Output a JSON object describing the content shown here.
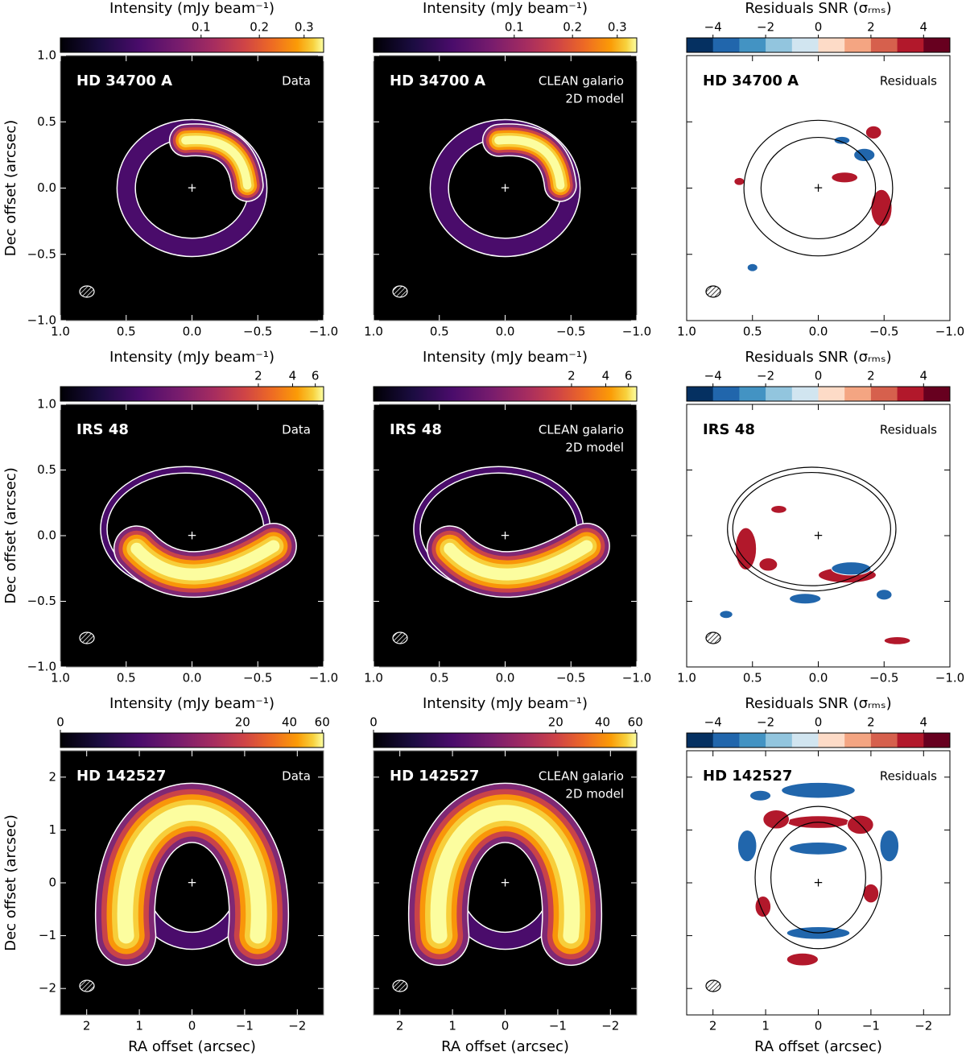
{
  "chart_data": [
    {
      "type": "image",
      "title": "Intensity (mJy beam⁻¹)",
      "target": "HD 34700 A",
      "label": [
        "Data"
      ],
      "colormap": "inferno",
      "clim": [
        0,
        0.35
      ],
      "cstretch": 0.5,
      "cticks": [
        0.1,
        0.2,
        0.3
      ],
      "xlim": [
        1,
        -1
      ],
      "ylim": [
        -1,
        1
      ],
      "ylabel": "Dec offset (arcsec)",
      "xticks": [
        {
          "value": 1,
          "label": "1.0"
        },
        {
          "value": 0.5,
          "label": "0.5"
        },
        {
          "value": 0,
          "label": "0.0"
        },
        {
          "value": -0.5,
          "label": "−0.5"
        },
        {
          "value": -1,
          "label": "−1.0"
        }
      ],
      "yticks": [
        {
          "value": -1,
          "label": "−1.0"
        },
        {
          "value": -0.5,
          "label": "−0.5"
        },
        {
          "value": 0,
          "label": "0.0"
        },
        {
          "value": 0.5,
          "label": "0.5"
        },
        {
          "value": 1,
          "label": "1.0"
        }
      ]
    },
    {
      "type": "image",
      "title": "Intensity (mJy beam⁻¹)",
      "target": "HD 34700 A",
      "label": [
        "CLEAN galario",
        "2D model"
      ],
      "colormap": "inferno",
      "clim": [
        0,
        0.35
      ],
      "cstretch": 0.5,
      "cticks": [
        0.1,
        0.2,
        0.3
      ],
      "xlim": [
        1,
        -1
      ],
      "ylim": [
        -1,
        1
      ],
      "yticklabels": false,
      "xticks": [
        {
          "value": 1,
          "label": "1.0"
        },
        {
          "value": 0.5,
          "label": "0.5"
        },
        {
          "value": 0,
          "label": "0.0"
        },
        {
          "value": -0.5,
          "label": "−0.5"
        },
        {
          "value": -1,
          "label": "−1.0"
        }
      ],
      "yticks": [
        -1,
        -0.5,
        0,
        0.5,
        1
      ]
    },
    {
      "type": "image",
      "title": "Residuals SNR (σᵣₘₛ)",
      "target": "HD 34700 A",
      "label": [
        "Residuals"
      ],
      "colormap": "RdBu_r",
      "clim": [
        -5,
        5
      ],
      "cticks": [
        {
          "value": -4,
          "label": "−4"
        },
        {
          "value": -2,
          "label": "−2"
        },
        0,
        2,
        4
      ],
      "xlim": [
        1,
        -1
      ],
      "ylim": [
        -1,
        1
      ],
      "yticklabels": false,
      "xticks": [
        {
          "value": 1,
          "label": "1.0"
        },
        {
          "value": 0.5,
          "label": "0.5"
        },
        {
          "value": 0,
          "label": "0.0"
        },
        {
          "value": -0.5,
          "label": "−0.5"
        },
        {
          "value": -1,
          "label": "−1.0"
        }
      ],
      "yticks": [
        -1,
        -0.5,
        0,
        0.5,
        1
      ]
    },
    {
      "type": "image",
      "title": "Intensity (mJy beam⁻¹)",
      "target": "IRS 48",
      "label": [
        "Data"
      ],
      "colormap": "inferno",
      "clim": [
        0,
        6.9
      ],
      "cstretch": 0.23,
      "cticks": [
        2,
        4,
        6
      ],
      "xlim": [
        1,
        -1
      ],
      "ylim": [
        -1,
        1
      ],
      "ylabel": "Dec offset (arcsec)",
      "xticks": [
        {
          "value": 1,
          "label": "1.0"
        },
        {
          "value": 0.5,
          "label": "0.5"
        },
        {
          "value": 0,
          "label": "0.0"
        },
        {
          "value": -0.5,
          "label": "−0.5"
        },
        {
          "value": -1,
          "label": "−1.0"
        }
      ],
      "yticks": [
        {
          "value": -1,
          "label": "−1.0"
        },
        {
          "value": -0.5,
          "label": "−0.5"
        },
        {
          "value": 0,
          "label": "0.0"
        },
        {
          "value": 0.5,
          "label": "0.5"
        },
        {
          "value": 1,
          "label": "1.0"
        }
      ]
    },
    {
      "type": "image",
      "title": "Intensity (mJy beam⁻¹)",
      "target": "IRS 48",
      "label": [
        "CLEAN galario",
        "2D model"
      ],
      "colormap": "inferno",
      "clim": [
        0,
        6.9
      ],
      "cstretch": 0.23,
      "cticks": [
        2,
        4,
        6
      ],
      "xlim": [
        1,
        -1
      ],
      "ylim": [
        -1,
        1
      ],
      "yticklabels": false,
      "xticks": [
        {
          "value": 1,
          "label": "1.0"
        },
        {
          "value": 0.5,
          "label": "0.5"
        },
        {
          "value": 0,
          "label": "0.0"
        },
        {
          "value": -0.5,
          "label": "−0.5"
        },
        {
          "value": -1,
          "label": "−1.0"
        }
      ],
      "yticks": [
        -1,
        -0.5,
        0,
        0.5,
        1
      ]
    },
    {
      "type": "image",
      "title": "Residuals SNR (σᵣₘₛ)",
      "target": "IRS 48",
      "label": [
        "Residuals"
      ],
      "colormap": "RdBu_r",
      "clim": [
        -5,
        5
      ],
      "cticks": [
        {
          "value": -4,
          "label": "−4"
        },
        {
          "value": -2,
          "label": "−2"
        },
        0,
        2,
        4
      ],
      "xlim": [
        1,
        -1
      ],
      "ylim": [
        -1,
        1
      ],
      "yticklabels": false,
      "xticks": [
        {
          "value": 1,
          "label": "1.0"
        },
        {
          "value": 0.5,
          "label": "0.5"
        },
        {
          "value": 0,
          "label": "0.0"
        },
        {
          "value": -0.5,
          "label": "−0.5"
        },
        {
          "value": -1,
          "label": "−1.0"
        }
      ],
      "yticks": [
        -1,
        -0.5,
        0,
        0.5,
        1
      ]
    },
    {
      "type": "image",
      "title": "Intensity (mJy beam⁻¹)",
      "target": "HD 142527",
      "label": [
        "Data"
      ],
      "colormap": "inferno",
      "clim": [
        0,
        61
      ],
      "cstretch": 0.33,
      "cticks": [
        0,
        20,
        40,
        60
      ],
      "xlim": [
        2.5,
        -2.5
      ],
      "ylim": [
        -2.5,
        2.5
      ],
      "xlabel": "RA offset (arcsec)",
      "ylabel": "Dec offset (arcsec)",
      "xticks": [
        2,
        1,
        0,
        {
          "value": -1,
          "label": "−1"
        },
        {
          "value": -2,
          "label": "−2"
        }
      ],
      "yticks": [
        {
          "value": -2,
          "label": "−2"
        },
        {
          "value": -1,
          "label": "−1"
        },
        0,
        1,
        2
      ]
    },
    {
      "type": "image",
      "title": "Intensity (mJy beam⁻¹)",
      "target": "HD 142527",
      "label": [
        "CLEAN galario",
        "2D model"
      ],
      "colormap": "inferno",
      "clim": [
        0,
        61
      ],
      "cstretch": 0.33,
      "cticks": [
        0,
        20,
        40,
        60
      ],
      "xlim": [
        2.5,
        -2.5
      ],
      "ylim": [
        -2.5,
        2.5
      ],
      "xlabel": "RA offset (arcsec)",
      "yticklabels": false,
      "xticks": [
        2,
        1,
        0,
        {
          "value": -1,
          "label": "−1"
        },
        {
          "value": -2,
          "label": "−2"
        }
      ],
      "yticks": [
        -2,
        -1,
        0,
        1,
        2
      ]
    },
    {
      "type": "image",
      "title": "Residuals SNR (σᵣₘₛ)",
      "target": "HD 142527",
      "label": [
        "Residuals"
      ],
      "colormap": "RdBu_r",
      "clim": [
        -5,
        5
      ],
      "cticks": [
        {
          "value": -4,
          "label": "−4"
        },
        {
          "value": -2,
          "label": "−2"
        },
        0,
        2,
        4
      ],
      "xlim": [
        2.5,
        -2.5
      ],
      "ylim": [
        -2.5,
        2.5
      ],
      "xlabel": "RA offset (arcsec)",
      "yticklabels": false,
      "xticks": [
        2,
        1,
        0,
        {
          "value": -1,
          "label": "−1"
        },
        {
          "value": -2,
          "label": "−2"
        }
      ],
      "yticks": [
        -2,
        -1,
        0,
        1,
        2
      ]
    }
  ]
}
